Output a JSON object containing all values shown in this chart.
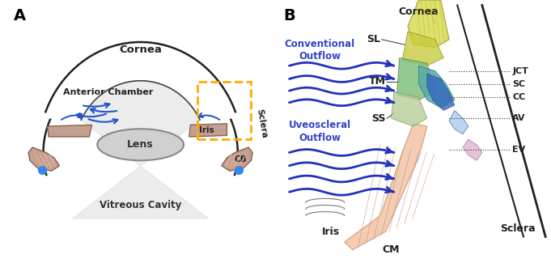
{
  "panel_A_label": "A",
  "panel_B_label": "B",
  "bg_color": "#ffffff",
  "panel_A": {
    "cornea_label": "Cornea",
    "anterior_chamber_label": "Anterior Chamber",
    "iris_label": "Iris",
    "lens_label": "Lens",
    "cb_label": "CB",
    "sclera_label": "Sclera",
    "vitreous_label": "Vitreous Cavity"
  },
  "panel_B": {
    "cornea_label": "Cornea",
    "sl_label": "SL",
    "conventional_label": "Conventional\nOutflow",
    "uveoscleral_label": "Uveoscleral\nOutflow",
    "tm_label": "TM",
    "ss_label": "SS",
    "iris_label": "Iris",
    "cm_label": "CM",
    "sclera_label": "Sclera",
    "jct_label": "JCT",
    "sc_label": "SC",
    "cc_label": "CC",
    "av_label": "AV",
    "ev_label": "EV"
  },
  "colors": {
    "outline": "#222222",
    "orange_dashed": "#ffaa00",
    "arrow_blue": "#2233bb",
    "lens_fill": "#cccccc",
    "iris_fill": "#c4a090",
    "vitreous_fill": "#e0e0e0",
    "sl_yellow": "#d4d860",
    "tm_green": "#88bb88",
    "tm_teal": "#55aaaa",
    "sc_blue": "#4477cc",
    "cm_pink": "#f0c0a0",
    "sclera_color": "#222222"
  }
}
